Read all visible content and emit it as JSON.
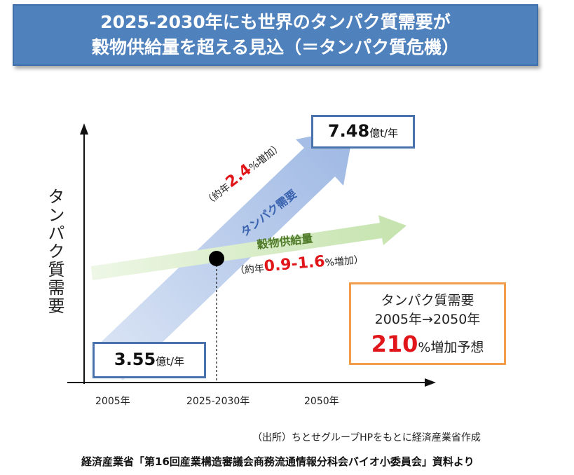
{
  "title": {
    "line1": "2025-2030年にも世界のタンパク質需要が",
    "line2": "穀物供給量を超える見込（＝タンパク質危機）"
  },
  "y_axis_label": "タンパク質需要",
  "x_ticks": [
    "2005年",
    "2025-2030年",
    "2050年"
  ],
  "protein_arrow": {
    "label": "タンパク需要",
    "rate_prefix": "（約年",
    "rate_value": "2.4",
    "rate_suffix": "%増加）"
  },
  "grain_arrow": {
    "label": "穀物供給量",
    "rate_prefix": "（約年",
    "rate_value": "0.9-1.6",
    "rate_suffix": "%増加）"
  },
  "start_box": {
    "value": "3.55",
    "unit": "億t/年"
  },
  "end_box": {
    "value": "7.48",
    "unit": "億t/年"
  },
  "summary_box": {
    "line1": "タンパク質需要",
    "line2": "2005年→2050年",
    "value": "210",
    "suffix": "%増加予想"
  },
  "source": "（出所）ちとせグループHPをもとに経済産業省作成",
  "credit": "経済産業省「第16回産業構造審議会商務流通情報分科会バイオ小委員会」資料より",
  "colors": {
    "banner": "#4f81bd",
    "protein_arrow": "#a9c0e6",
    "grain_arrow": "#cde6b8",
    "box_border": "#4a72ac",
    "summary_border": "#f39c4a",
    "highlight_red": "#e0161b",
    "protein_label": "#3a63b0",
    "grain_label": "#4f7a28"
  }
}
